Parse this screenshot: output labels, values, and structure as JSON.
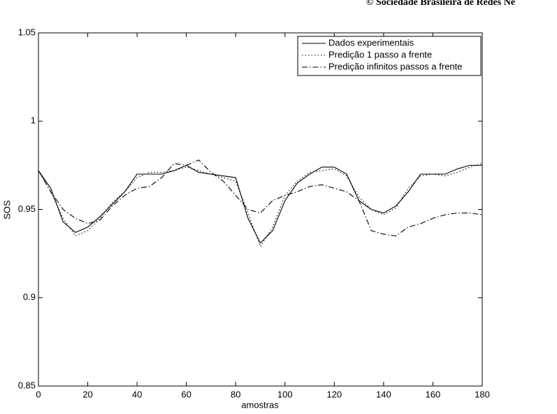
{
  "chart_data": {
    "type": "line",
    "header": "© Sociedade Brasileira de Redes Ne",
    "xlabel": "amostras",
    "ylabel": "SOS",
    "x": [
      0,
      5,
      10,
      15,
      20,
      25,
      30,
      35,
      40,
      45,
      50,
      55,
      60,
      65,
      70,
      75,
      80,
      85,
      90,
      95,
      100,
      105,
      110,
      115,
      120,
      125,
      130,
      135,
      140,
      145,
      150,
      155,
      160,
      165,
      170,
      175,
      180
    ],
    "series": [
      {
        "name": "Dados experimentais",
        "color": "#000000",
        "dash": "solid",
        "values": [
          0.972,
          0.962,
          0.943,
          0.937,
          0.94,
          0.946,
          0.953,
          0.96,
          0.97,
          0.97,
          0.97,
          0.972,
          0.975,
          0.971,
          0.97,
          0.969,
          0.968,
          0.945,
          0.931,
          0.938,
          0.955,
          0.965,
          0.97,
          0.974,
          0.974,
          0.97,
          0.955,
          0.95,
          0.948,
          0.952,
          0.96,
          0.97,
          0.97,
          0.97,
          0.973,
          0.975,
          0.975
        ]
      },
      {
        "name": "Predição 1 passo a frente",
        "color": "#000000",
        "dash": "dotted",
        "values": [
          0.972,
          0.96,
          0.945,
          0.935,
          0.938,
          0.945,
          0.954,
          0.96,
          0.968,
          0.971,
          0.971,
          0.972,
          0.974,
          0.972,
          0.97,
          0.968,
          0.966,
          0.948,
          0.929,
          0.94,
          0.958,
          0.966,
          0.971,
          0.972,
          0.973,
          0.969,
          0.957,
          0.95,
          0.947,
          0.951,
          0.962,
          0.969,
          0.97,
          0.969,
          0.971,
          0.974,
          0.976
        ]
      },
      {
        "name": "Predição infinitos passos a frente",
        "color": "#000000",
        "dash": "dashdot",
        "values": [
          0.972,
          0.96,
          0.95,
          0.945,
          0.942,
          0.944,
          0.952,
          0.958,
          0.962,
          0.963,
          0.968,
          0.976,
          0.975,
          0.978,
          0.971,
          0.966,
          0.958,
          0.95,
          0.948,
          0.955,
          0.958,
          0.96,
          0.963,
          0.964,
          0.962,
          0.96,
          0.955,
          0.938,
          0.936,
          0.935,
          0.94,
          0.942,
          0.945,
          0.947,
          0.948,
          0.948,
          0.947
        ]
      }
    ],
    "xlim": [
      0,
      180
    ],
    "xticks": [
      0,
      20,
      40,
      60,
      80,
      100,
      120,
      140,
      160,
      180
    ],
    "ylim": [
      0.85,
      1.05
    ],
    "yticks": [
      0.85,
      0.9,
      0.95,
      1,
      1.05
    ],
    "legend": "top-right",
    "grid": false
  }
}
